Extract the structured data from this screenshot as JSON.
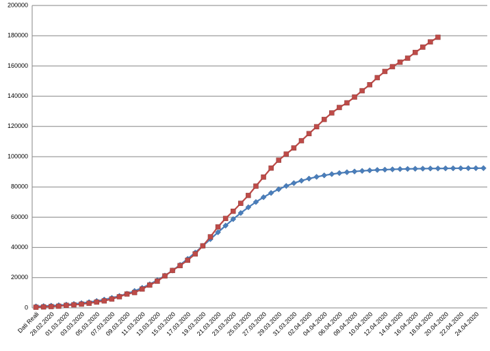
{
  "chart_data": {
    "type": "line",
    "categories": [
      "Dati Reali",
      null,
      "28.02.2020",
      null,
      "01.03.2020",
      null,
      "03.03.2020",
      null,
      "05.03.2020",
      null,
      "07.03.2020",
      null,
      "09.03.2020",
      null,
      "11.03.2020",
      null,
      "13.03.2020",
      null,
      "15.03.2020",
      null,
      "17.03.2020",
      null,
      "19.03.2020",
      null,
      "21.03.2020",
      null,
      "23.03.2020",
      null,
      "25.03.2020",
      null,
      "27.03.2020",
      null,
      "29.03.2020",
      null,
      "31.03.2020",
      null,
      "02.04.2020",
      null,
      "04.04.2020",
      null,
      "06.04.2020",
      null,
      "08.04.2020",
      null,
      "10.04.2020",
      null,
      "12.04.2020",
      null,
      "14.04.2020",
      null,
      "16.04.2020",
      null,
      "18.04.2020",
      null,
      "20.04.2020",
      null,
      "22.04.2020",
      null,
      "24.04.2020",
      null
    ],
    "series": [
      {
        "color": "#4a7ebb",
        "marker": "diamond",
        "values": [
          1000,
          1210,
          1470,
          1780,
          2150,
          2600,
          3150,
          3790,
          4560,
          5490,
          6590,
          7890,
          9410,
          11200,
          13250,
          15630,
          18320,
          21360,
          24730,
          28420,
          32400,
          36610,
          41000,
          45480,
          50000,
          54410,
          58690,
          62750,
          66550,
          70020,
          73180,
          76000,
          78460,
          80640,
          82520,
          84120,
          85500,
          86660,
          87640,
          88470,
          89160,
          89730,
          90210,
          90610,
          90940,
          91210,
          91430,
          91620,
          91780,
          91900,
          92010,
          92090,
          92170,
          92220,
          92270,
          92310,
          92340,
          92370,
          92390,
          92410
        ]
      },
      {
        "color": "#be4b48",
        "marker": "square",
        "values": [
          450,
          650,
          888,
          1128,
          1694,
          2036,
          2502,
          3089,
          3858,
          4636,
          5883,
          7375,
          9172,
          10149,
          12462,
          15113,
          17660,
          21157,
          24747,
          27980,
          31506,
          35713,
          41035,
          47021,
          53578,
          59138,
          63927,
          69176,
          74386,
          80539,
          86498,
          92472,
          97689,
          101739,
          105792,
          110574,
          115242,
          119827,
          124632,
          128948,
          132547,
          135586,
          139422,
          143626,
          147577,
          152271,
          156363,
          159516,
          162488,
          165155,
          168941,
          172434,
          175925,
          178972,
          null,
          null,
          null,
          null,
          null,
          null
        ]
      }
    ],
    "ylim": [
      0,
      200000
    ],
    "yticks": [
      0,
      20000,
      40000,
      60000,
      80000,
      100000,
      120000,
      140000,
      160000,
      180000,
      200000
    ],
    "grid": true
  }
}
